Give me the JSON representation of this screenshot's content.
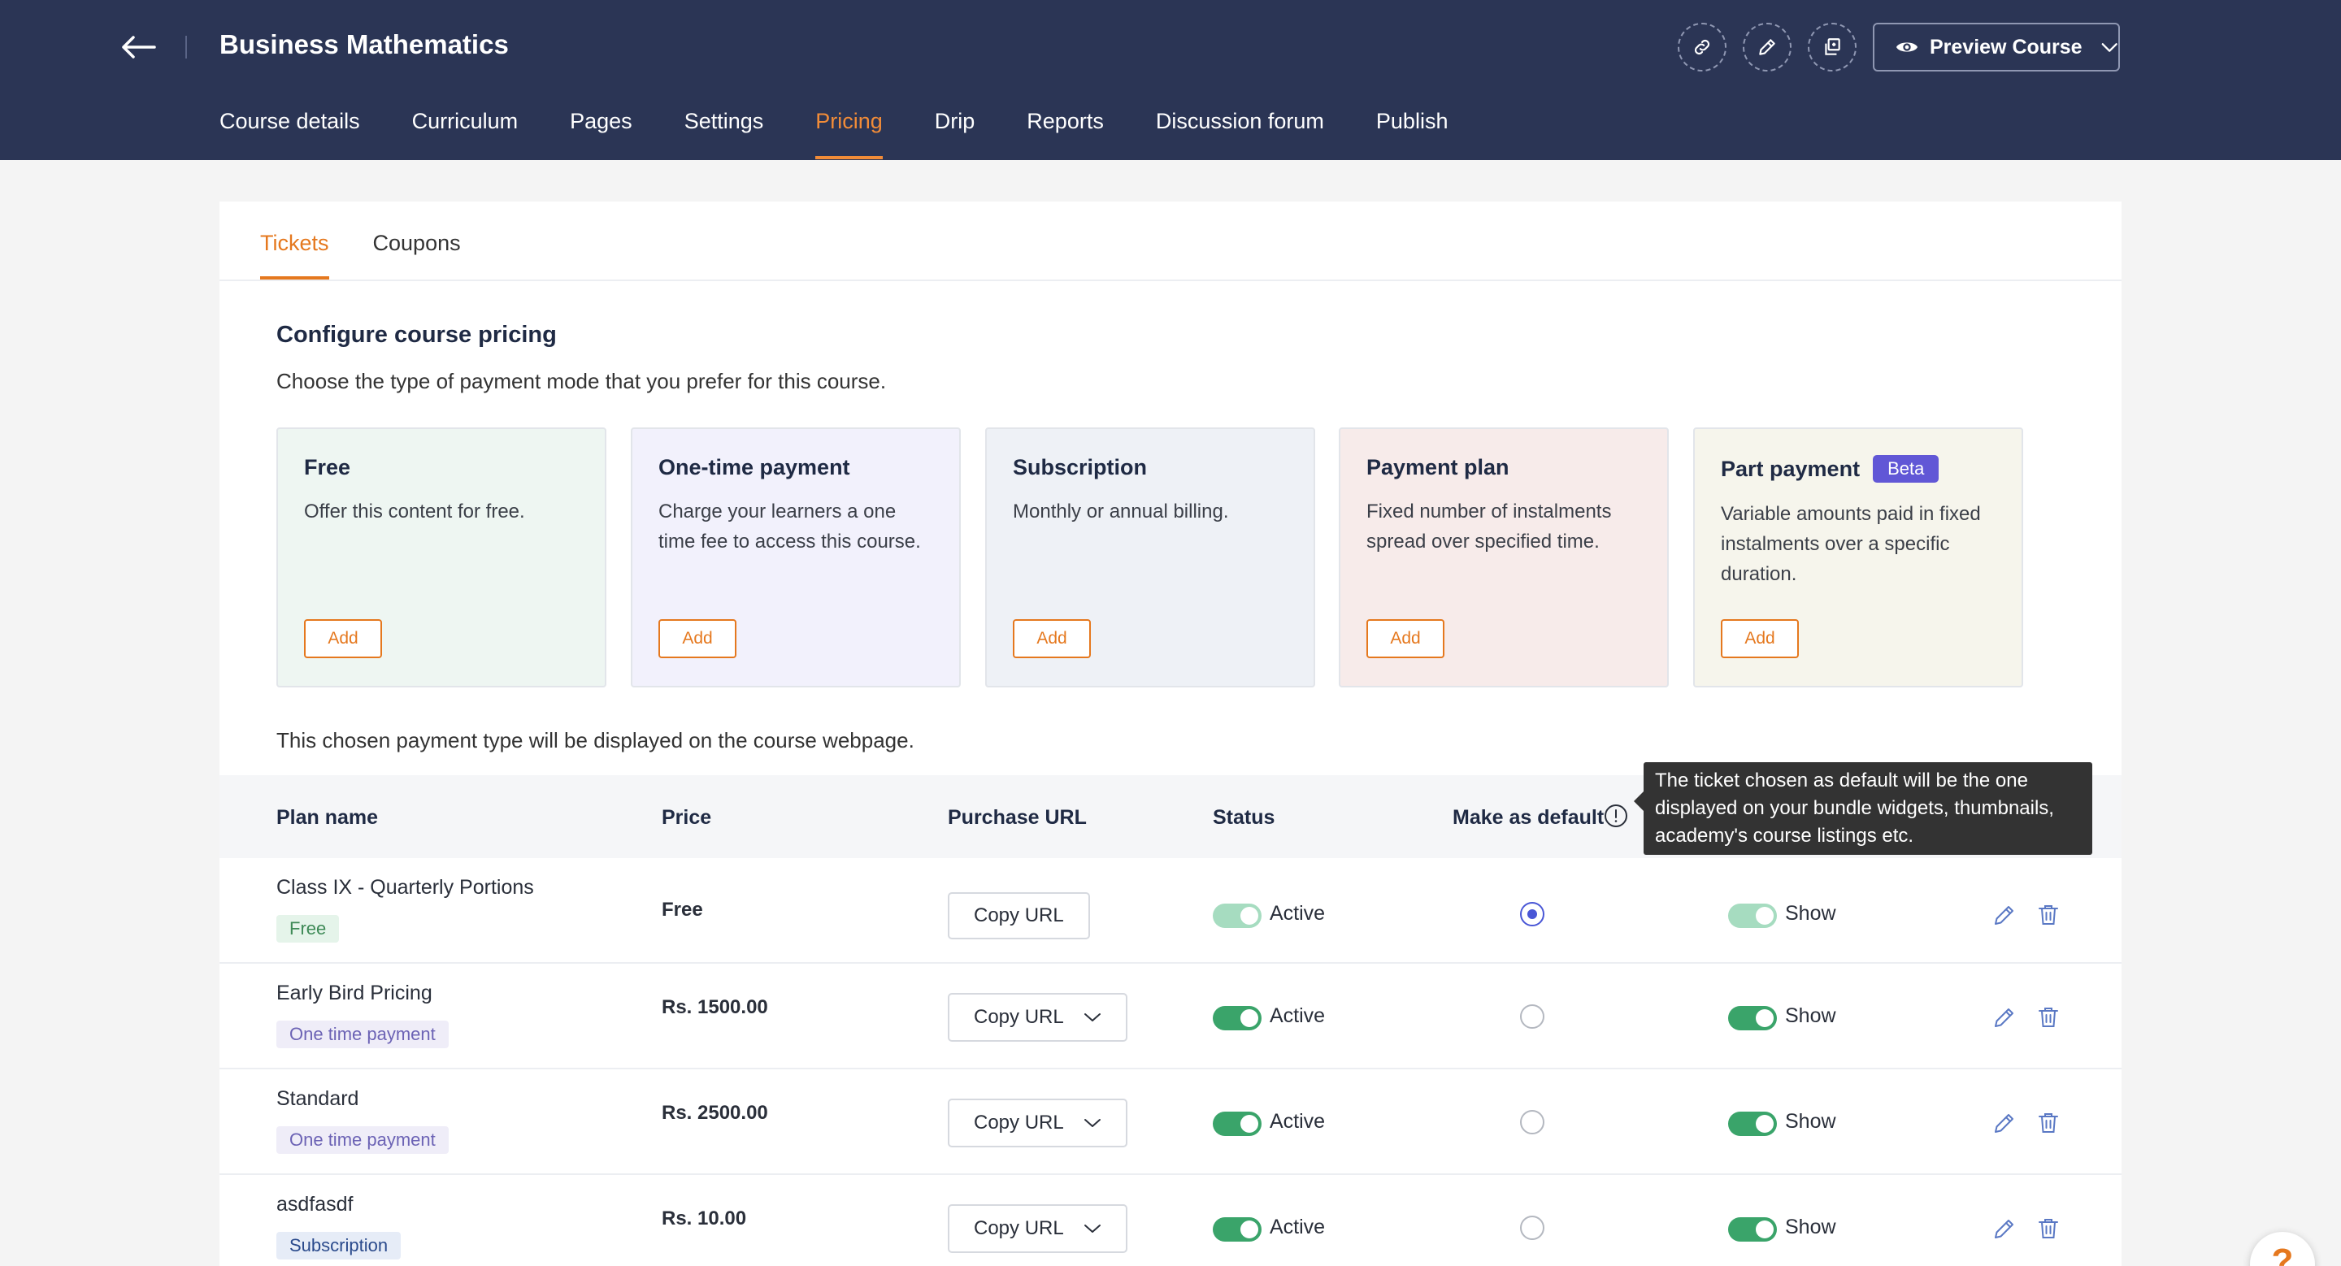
{
  "header": {
    "course_title": "Business Mathematics",
    "preview_label": "Preview Course",
    "nav_tabs": [
      {
        "label": "Course details"
      },
      {
        "label": "Curriculum"
      },
      {
        "label": "Pages"
      },
      {
        "label": "Settings"
      },
      {
        "label": "Pricing",
        "active": true
      },
      {
        "label": "Drip"
      },
      {
        "label": "Reports"
      },
      {
        "label": "Discussion forum"
      },
      {
        "label": "Publish"
      }
    ]
  },
  "subtabs": [
    {
      "label": "Tickets",
      "active": true
    },
    {
      "label": "Coupons"
    }
  ],
  "configure": {
    "title": "Configure course pricing",
    "subtitle": "Choose the type of payment mode that you prefer for this course."
  },
  "pricing_cards": [
    {
      "title": "Free",
      "description": "Offer this content for free.",
      "button": "Add",
      "bg": "#eef6f2"
    },
    {
      "title": "One-time payment",
      "description": "Charge your learners a one time fee to access this course.",
      "button": "Add",
      "bg": "#f2f1fc"
    },
    {
      "title": "Subscription",
      "description": "Monthly or annual billing.",
      "button": "Add",
      "bg": "#eef1f6"
    },
    {
      "title": "Payment plan",
      "description": "Fixed number of instalments spread over specified time.",
      "button": "Add",
      "bg": "#f7ebea"
    },
    {
      "title": "Part payment",
      "badge": "Beta",
      "description": "Variable amounts paid in fixed instalments over a specific duration.",
      "button": "Add",
      "bg": "#f6f5ec"
    }
  ],
  "chosen_note": "This chosen payment type will be displayed on the course webpage.",
  "table": {
    "headers": {
      "plan_name": "Plan name",
      "price": "Price",
      "purchase_url": "Purchase URL",
      "status": "Status",
      "make_default": "Make as default"
    },
    "rows": [
      {
        "name": "Class IX - Quarterly Portions",
        "tag": "Free",
        "price": "Free",
        "copy_label": "Copy URL",
        "status": "Active",
        "visibility": "Show",
        "default": true
      },
      {
        "name": "Early Bird Pricing",
        "tag": "One time payment",
        "price": "Rs. 1500.00",
        "copy_label": "Copy URL",
        "status": "Active",
        "visibility": "Show",
        "default": false
      },
      {
        "name": "Standard",
        "tag": "One time payment",
        "price": "Rs. 2500.00",
        "copy_label": "Copy URL",
        "status": "Active",
        "visibility": "Show",
        "default": false
      },
      {
        "name": "asdfasdf",
        "tag": "Subscription",
        "price": "Rs. 10.00",
        "copy_label": "Copy URL",
        "status": "Active",
        "visibility": "Show",
        "default": false
      }
    ]
  },
  "tooltip": "The ticket chosen as default will be the one displayed on your bundle widgets, thumbnails, academy's course listings etc.",
  "help_label": "?",
  "colors": {
    "header_bg": "#2b3555",
    "accent": "#e5781e",
    "toggle_on": "#3aa46a",
    "radio_selected": "#4a57d6"
  }
}
